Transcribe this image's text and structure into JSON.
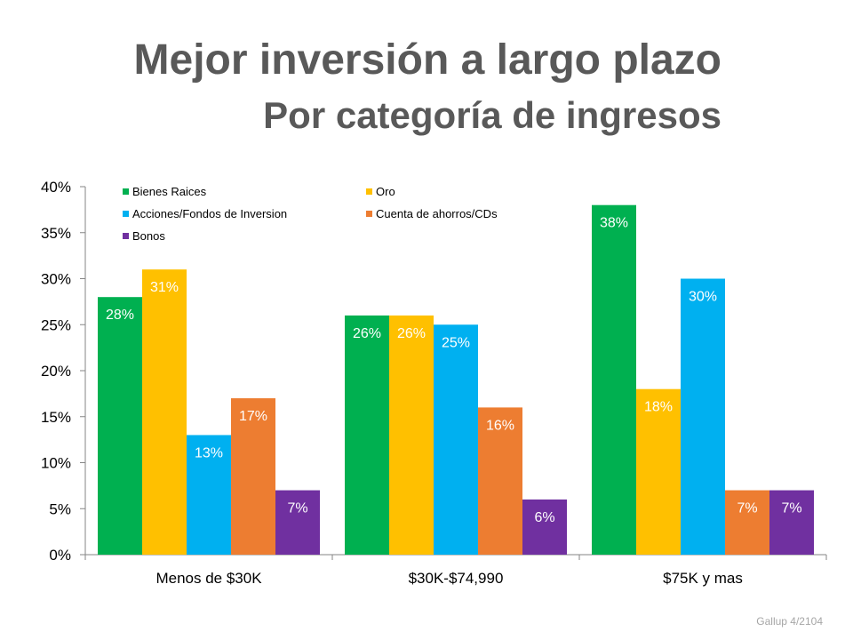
{
  "slide": {
    "title": "Mejor inversión a largo plazo",
    "subtitle": "Por categoría de ingresos",
    "source": "Gallup 4/2104"
  },
  "chart_data": {
    "type": "bar",
    "title": "Mejor inversión a largo plazo",
    "subtitle": "Por categoría de ingresos",
    "xlabel": "",
    "ylabel": "",
    "ylim": [
      0,
      40
    ],
    "yticks": [
      0,
      5,
      10,
      15,
      20,
      25,
      30,
      35,
      40
    ],
    "ytick_labels": [
      "0%",
      "5%",
      "10%",
      "15%",
      "20%",
      "25%",
      "30%",
      "35%",
      "40%"
    ],
    "value_suffix": "%",
    "grid": false,
    "legend_position": "top-left",
    "categories": [
      "Menos de $30K",
      "$30K-$74,990",
      "$75K y mas"
    ],
    "series": [
      {
        "name": "Bienes Raices",
        "color": "#00b050",
        "values": [
          28,
          26,
          38
        ]
      },
      {
        "name": "Oro",
        "color": "#ffc000",
        "values": [
          31,
          26,
          18
        ]
      },
      {
        "name": "Acciones/Fondos de Inversion",
        "color": "#00b0f0",
        "values": [
          13,
          25,
          30
        ]
      },
      {
        "name": "Cuenta de ahorros/CDs",
        "color": "#ed7d31",
        "values": [
          17,
          16,
          7
        ]
      },
      {
        "name": "Bonos",
        "color": "#7030a0",
        "values": [
          7,
          6,
          7
        ]
      }
    ]
  }
}
